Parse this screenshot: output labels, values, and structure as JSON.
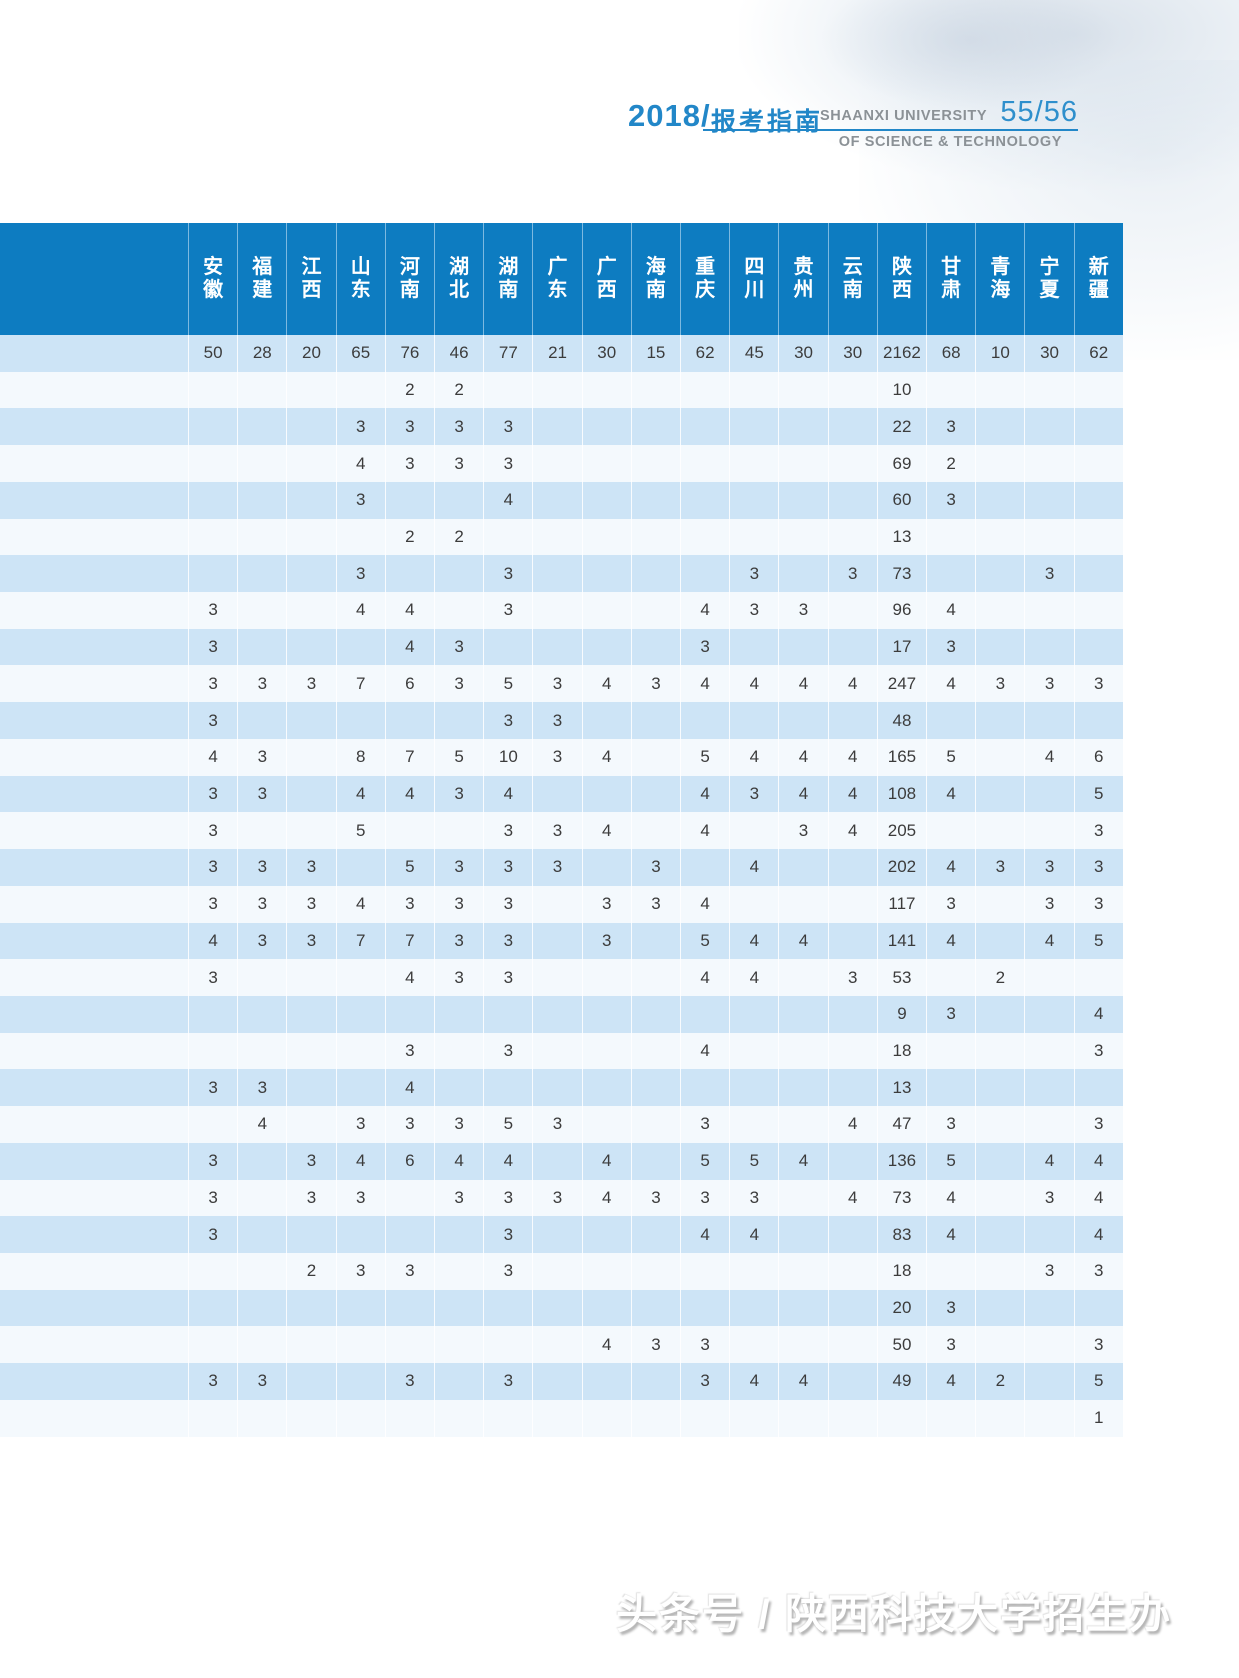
{
  "page_header": {
    "year": "2018/",
    "guide_title": "报考指南",
    "university_name_line1": "SHAANXI UNIVERSITY",
    "university_name_line2": "OF SCIENCE & TECHNOLOGY",
    "page_number": "55/56"
  },
  "watermark_text": "头条号 / 陕西科技大学招生办",
  "colors": {
    "table_header_bg": "#0d7cc1",
    "row_light_blue": "#cde4f6",
    "row_white": "#f4f9fd",
    "accent_blue": "#2287c8",
    "header_gray": "#8b9196"
  },
  "chart_data": {
    "type": "table",
    "columns": [
      "安徽",
      "福建",
      "江西",
      "山东",
      "河南",
      "湖北",
      "湖南",
      "广东",
      "广西",
      "海南",
      "重庆",
      "四川",
      "贵州",
      "云南",
      "陕西",
      "甘肃",
      "青海",
      "宁夏",
      "新疆"
    ],
    "rows": [
      [
        "50",
        "28",
        "20",
        "65",
        "76",
        "46",
        "77",
        "21",
        "30",
        "15",
        "62",
        "45",
        "30",
        "30",
        "2162",
        "68",
        "10",
        "30",
        "62"
      ],
      [
        "",
        "",
        "",
        "",
        "2",
        "2",
        "",
        "",
        "",
        "",
        "",
        "",
        "",
        "",
        "10",
        "",
        "",
        "",
        ""
      ],
      [
        "",
        "",
        "",
        "3",
        "3",
        "3",
        "3",
        "",
        "",
        "",
        "",
        "",
        "",
        "",
        "22",
        "3",
        "",
        "",
        ""
      ],
      [
        "",
        "",
        "",
        "4",
        "3",
        "3",
        "3",
        "",
        "",
        "",
        "",
        "",
        "",
        "",
        "69",
        "2",
        "",
        "",
        ""
      ],
      [
        "",
        "",
        "",
        "3",
        "",
        "",
        "4",
        "",
        "",
        "",
        "",
        "",
        "",
        "",
        "60",
        "3",
        "",
        "",
        ""
      ],
      [
        "",
        "",
        "",
        "",
        "2",
        "2",
        "",
        "",
        "",
        "",
        "",
        "",
        "",
        "",
        "13",
        "",
        "",
        "",
        ""
      ],
      [
        "",
        "",
        "",
        "3",
        "",
        "",
        "3",
        "",
        "",
        "",
        "",
        "3",
        "",
        "3",
        "73",
        "",
        "",
        "3",
        ""
      ],
      [
        "3",
        "",
        "",
        "4",
        "4",
        "",
        "3",
        "",
        "",
        "",
        "4",
        "3",
        "3",
        "",
        "96",
        "4",
        "",
        "",
        ""
      ],
      [
        "3",
        "",
        "",
        "",
        "4",
        "3",
        "",
        "",
        "",
        "",
        "3",
        "",
        "",
        "",
        "17",
        "3",
        "",
        "",
        ""
      ],
      [
        "3",
        "3",
        "3",
        "7",
        "6",
        "3",
        "5",
        "3",
        "4",
        "3",
        "4",
        "4",
        "4",
        "4",
        "247",
        "4",
        "3",
        "3",
        "3"
      ],
      [
        "3",
        "",
        "",
        "",
        "",
        "",
        "3",
        "3",
        "",
        "",
        "",
        "",
        "",
        "",
        "48",
        "",
        "",
        "",
        ""
      ],
      [
        "4",
        "3",
        "",
        "8",
        "7",
        "5",
        "10",
        "3",
        "4",
        "",
        "5",
        "4",
        "4",
        "4",
        "165",
        "5",
        "",
        "4",
        "6"
      ],
      [
        "3",
        "3",
        "",
        "4",
        "4",
        "3",
        "4",
        "",
        "",
        "",
        "4",
        "3",
        "4",
        "4",
        "108",
        "4",
        "",
        "",
        "5"
      ],
      [
        "3",
        "",
        "",
        "5",
        "",
        "",
        "3",
        "3",
        "4",
        "",
        "4",
        "",
        "3",
        "4",
        "205",
        "",
        "",
        "",
        "3"
      ],
      [
        "3",
        "3",
        "3",
        "",
        "5",
        "3",
        "3",
        "3",
        "",
        "3",
        "",
        "4",
        "",
        "",
        "202",
        "4",
        "3",
        "3",
        "3"
      ],
      [
        "3",
        "3",
        "3",
        "4",
        "3",
        "3",
        "3",
        "",
        "3",
        "3",
        "4",
        "",
        "",
        "",
        "117",
        "3",
        "",
        "3",
        "3"
      ],
      [
        "4",
        "3",
        "3",
        "7",
        "7",
        "3",
        "3",
        "",
        "3",
        "",
        "5",
        "4",
        "4",
        "",
        "141",
        "4",
        "",
        "4",
        "5"
      ],
      [
        "3",
        "",
        "",
        "",
        "4",
        "3",
        "3",
        "",
        "",
        "",
        "4",
        "4",
        "",
        "3",
        "53",
        "",
        "2",
        "",
        ""
      ],
      [
        "",
        "",
        "",
        "",
        "",
        "",
        "",
        "",
        "",
        "",
        "",
        "",
        "",
        "",
        "9",
        "3",
        "",
        "",
        "4"
      ],
      [
        "",
        "",
        "",
        "",
        "3",
        "",
        "3",
        "",
        "",
        "",
        "4",
        "",
        "",
        "",
        "18",
        "",
        "",
        "",
        "3"
      ],
      [
        "3",
        "3",
        "",
        "",
        "4",
        "",
        "",
        "",
        "",
        "",
        "",
        "",
        "",
        "",
        "13",
        "",
        "",
        "",
        ""
      ],
      [
        "",
        "4",
        "",
        "3",
        "3",
        "3",
        "5",
        "3",
        "",
        "",
        "3",
        "",
        "",
        "4",
        "47",
        "3",
        "",
        "",
        "3"
      ],
      [
        "3",
        "",
        "3",
        "4",
        "6",
        "4",
        "4",
        "",
        "4",
        "",
        "5",
        "5",
        "4",
        "",
        "136",
        "5",
        "",
        "4",
        "4"
      ],
      [
        "3",
        "",
        "3",
        "3",
        "",
        "3",
        "3",
        "3",
        "4",
        "3",
        "3",
        "3",
        "",
        "4",
        "73",
        "4",
        "",
        "3",
        "4"
      ],
      [
        "3",
        "",
        "",
        "",
        "",
        "",
        "3",
        "",
        "",
        "",
        "4",
        "4",
        "",
        "",
        "83",
        "4",
        "",
        "",
        "4"
      ],
      [
        "",
        "",
        "2",
        "3",
        "3",
        "",
        "3",
        "",
        "",
        "",
        "",
        "",
        "",
        "",
        "18",
        "",
        "",
        "3",
        "3"
      ],
      [
        "",
        "",
        "",
        "",
        "",
        "",
        "",
        "",
        "",
        "",
        "",
        "",
        "",
        "",
        "20",
        "3",
        "",
        "",
        ""
      ],
      [
        "",
        "",
        "",
        "",
        "",
        "",
        "",
        "",
        "4",
        "3",
        "3",
        "",
        "",
        "",
        "50",
        "3",
        "",
        "",
        "3"
      ],
      [
        "3",
        "3",
        "",
        "",
        "3",
        "",
        "3",
        "",
        "",
        "",
        "3",
        "4",
        "4",
        "",
        "49",
        "4",
        "2",
        "",
        "5"
      ],
      [
        "",
        "",
        "",
        "",
        "",
        "",
        "",
        "",
        "",
        "",
        "",
        "",
        "",
        "",
        "",
        "",
        "",
        "",
        "1"
      ]
    ]
  }
}
